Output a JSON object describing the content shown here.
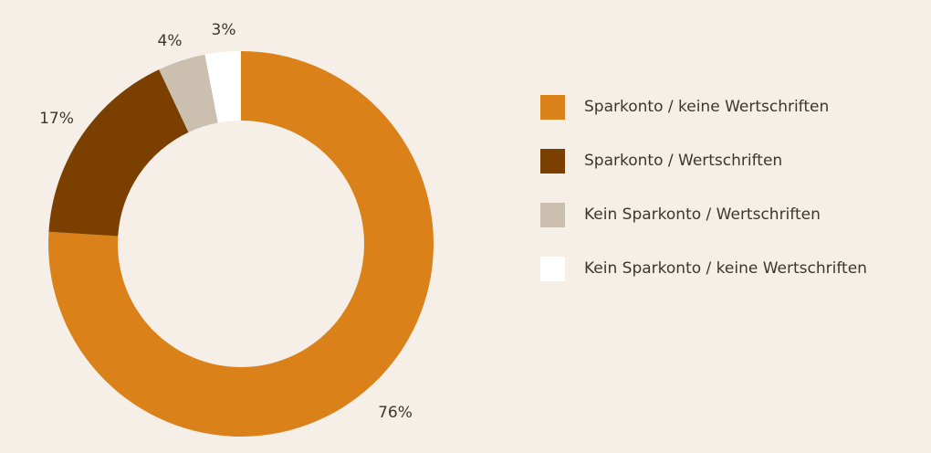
{
  "chart_data": {
    "type": "pie",
    "variant": "donut",
    "title": "",
    "categories": [
      "Sparkonto / keine Wertschriften",
      "Sparkonto / Wertschriften",
      "Kein Sparkonto / Wertschriften",
      "Kein Sparkonto / keine Wertschriften"
    ],
    "values": [
      76,
      17,
      4,
      3
    ],
    "value_labels": [
      "76%",
      "17%",
      "4%",
      "3%"
    ],
    "colors": [
      "#db8119",
      "#7b3f00",
      "#cbbfb0",
      "#ffffff"
    ],
    "legend_position": "right",
    "start_angle": "12 o'clock",
    "direction": "clockwise"
  }
}
